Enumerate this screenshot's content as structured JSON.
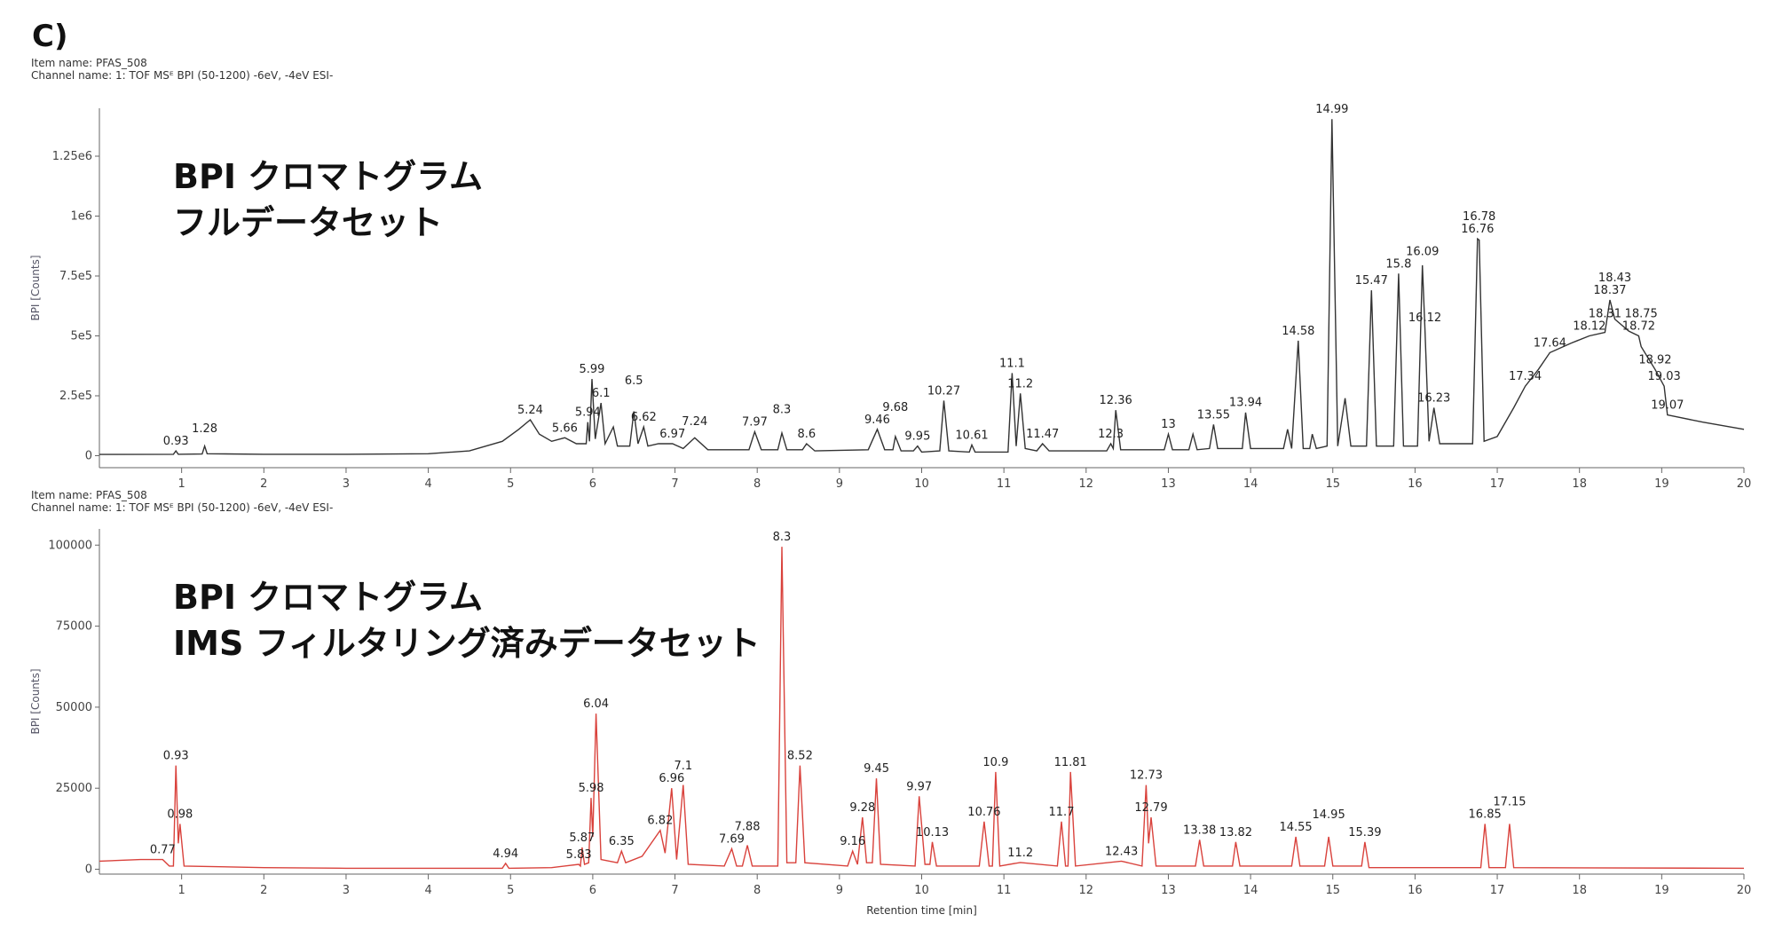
{
  "panel_label": "C)",
  "chart_data": [
    {
      "type": "line",
      "item_name": "Item name: PFAS_508",
      "channel_name": "Channel name: 1: TOF MSᴱ BPI (50-1200) -6eV, -4eV ESI-",
      "annotation": [
        "BPI クロマトグラム",
        "フルデータセット"
      ],
      "y_label": "BPI [Counts]",
      "color": "#333333",
      "xlim": [
        0,
        20
      ],
      "xticks": [
        1,
        2,
        3,
        4,
        5,
        6,
        7,
        8,
        9,
        10,
        11,
        12,
        13,
        14,
        15,
        16,
        17,
        18,
        19,
        20
      ],
      "ylim": [
        -50000,
        1450000
      ],
      "yticks": [
        0,
        {
          "value": 250000,
          "label": "2.5e5"
        },
        {
          "value": 500000,
          "label": "5e5"
        },
        {
          "value": 750000,
          "label": "7.5e5"
        },
        {
          "value": 1000000,
          "label": "1e6"
        },
        {
          "value": 1250000,
          "label": "1.25e6"
        }
      ],
      "x": [
        0,
        0.9,
        0.93,
        0.96,
        1.25,
        1.28,
        1.31,
        2,
        3,
        4,
        4.5,
        4.9,
        5.1,
        5.24,
        5.35,
        5.5,
        5.66,
        5.8,
        5.92,
        5.94,
        5.96,
        5.99,
        6.03,
        6.1,
        6.15,
        6.25,
        6.3,
        6.45,
        6.5,
        6.55,
        6.62,
        6.67,
        6.8,
        6.97,
        7.1,
        7.24,
        7.4,
        7.9,
        7.97,
        8.05,
        8.25,
        8.3,
        8.36,
        8.55,
        8.6,
        8.7,
        9.35,
        9.46,
        9.55,
        9.65,
        9.68,
        9.75,
        9.9,
        9.95,
        10,
        10.22,
        10.27,
        10.33,
        10.58,
        10.61,
        10.65,
        11.05,
        11.1,
        11.15,
        11.2,
        11.26,
        11.4,
        11.47,
        11.55,
        12.25,
        12.3,
        12.33,
        12.36,
        12.42,
        12.95,
        13,
        13.05,
        13.25,
        13.3,
        13.35,
        13.5,
        13.55,
        13.6,
        13.9,
        13.94,
        14,
        14.4,
        14.45,
        14.5,
        14.58,
        14.64,
        14.72,
        14.75,
        14.8,
        14.93,
        14.99,
        15.06,
        15.15,
        15.22,
        15.41,
        15.47,
        15.53,
        15.74,
        15.8,
        15.86,
        16.03,
        16.09,
        16.12,
        16.17,
        16.23,
        16.3,
        16.7,
        16.76,
        16.78,
        16.84,
        17,
        17.2,
        17.34,
        17.5,
        17.64,
        17.9,
        18.12,
        18.31,
        18.37,
        18.43,
        18.6,
        18.72,
        18.75,
        18.92,
        19.03,
        19.07,
        19.5,
        20
      ],
      "values": [
        5000,
        6000,
        20000,
        6000,
        7000,
        40000,
        8000,
        6000,
        6000,
        8000,
        20000,
        60000,
        110000,
        150000,
        90000,
        60000,
        75000,
        50000,
        50000,
        140000,
        60000,
        320000,
        70000,
        220000,
        50000,
        120000,
        40000,
        40000,
        185000,
        50000,
        120000,
        40000,
        50000,
        50000,
        30000,
        75000,
        25000,
        25000,
        100000,
        25000,
        25000,
        95000,
        25000,
        25000,
        50000,
        20000,
        25000,
        110000,
        25000,
        25000,
        80000,
        20000,
        20000,
        40000,
        15000,
        20000,
        230000,
        20000,
        15000,
        45000,
        15000,
        15000,
        345000,
        40000,
        260000,
        30000,
        20000,
        50000,
        20000,
        20000,
        50000,
        30000,
        190000,
        25000,
        25000,
        90000,
        25000,
        25000,
        90000,
        25000,
        30000,
        130000,
        30000,
        30000,
        180000,
        30000,
        30000,
        110000,
        30000,
        480000,
        30000,
        30000,
        90000,
        30000,
        40000,
        1405000,
        40000,
        240000,
        40000,
        40000,
        690000,
        40000,
        40000,
        760000,
        40000,
        40000,
        795000,
        535000,
        60000,
        200000,
        50000,
        50000,
        905000,
        900000,
        60000,
        80000,
        200000,
        290000,
        360000,
        430000,
        470000,
        500000,
        515000,
        650000,
        570000,
        520000,
        500000,
        455000,
        360000,
        290000,
        170000,
        140000,
        110000
      ],
      "peak_labels": {
        "x": [
          0.93,
          1.28,
          5.24,
          5.66,
          5.94,
          5.99,
          6.1,
          6.5,
          6.62,
          6.97,
          7.24,
          7.97,
          8.3,
          8.6,
          9.46,
          9.68,
          9.95,
          10.27,
          10.61,
          11.1,
          11.2,
          11.47,
          12.3,
          12.36,
          13.0,
          13.55,
          13.94,
          14.58,
          14.99,
          15.47,
          15.8,
          16.09,
          16.12,
          16.23,
          16.76,
          16.78,
          17.34,
          17.64,
          18.12,
          18.31,
          18.37,
          18.43,
          18.72,
          18.75,
          18.92,
          19.03,
          19.07
        ],
        "y": [
          20000,
          40000,
          150000,
          75000,
          140000,
          320000,
          220000,
          185000,
          120000,
          50000,
          75000,
          100000,
          95000,
          50000,
          110000,
          80000,
          40000,
          230000,
          45000,
          345000,
          260000,
          50000,
          50000,
          190000,
          90000,
          130000,
          180000,
          480000,
          1405000,
          690000,
          760000,
          795000,
          535000,
          200000,
          905000,
          900000,
          290000,
          430000,
          500000,
          515000,
          650000,
          570000,
          500000,
          455000,
          360000,
          290000,
          170000
        ]
      }
    },
    {
      "type": "line",
      "item_name": "Item name: PFAS_508",
      "channel_name": "Channel name: 1: TOF MSᴱ BPI (50-1200) -6eV, -4eV ESI-",
      "annotation": [
        "BPI クロマトグラム",
        "IMS フィルタリング済みデータセット"
      ],
      "y_label": "BPI [Counts]",
      "x_label": "Retention time [min]",
      "color": "#d9423c",
      "xlim": [
        0,
        20
      ],
      "xticks": [
        1,
        2,
        3,
        4,
        5,
        6,
        7,
        8,
        9,
        10,
        11,
        12,
        13,
        14,
        15,
        16,
        17,
        18,
        19,
        20
      ],
      "ylim": [
        -1500,
        105000
      ],
      "yticks": [
        0,
        25000,
        50000,
        75000,
        100000
      ],
      "x": [
        0,
        0.5,
        0.77,
        0.85,
        0.9,
        0.93,
        0.96,
        0.98,
        1.03,
        2,
        3,
        4,
        4.9,
        4.94,
        4.98,
        5.5,
        5.83,
        5.85,
        5.87,
        5.9,
        5.95,
        5.98,
        6,
        6.04,
        6.1,
        6.3,
        6.35,
        6.4,
        6.6,
        6.82,
        6.88,
        6.96,
        7.02,
        7.1,
        7.16,
        7.6,
        7.69,
        7.75,
        7.82,
        7.88,
        7.94,
        8.25,
        8.3,
        8.36,
        8.47,
        8.52,
        8.58,
        9.1,
        9.16,
        9.22,
        9.28,
        9.33,
        9.4,
        9.45,
        9.5,
        9.92,
        9.97,
        10.04,
        10.1,
        10.13,
        10.18,
        10.7,
        10.76,
        10.82,
        10.86,
        10.9,
        10.95,
        11.2,
        11.65,
        11.7,
        11.75,
        11.78,
        11.81,
        11.87,
        12.43,
        12.68,
        12.73,
        12.76,
        12.79,
        12.85,
        13.33,
        13.38,
        13.43,
        13.78,
        13.82,
        13.87,
        14.5,
        14.55,
        14.6,
        14.9,
        14.95,
        15,
        15.35,
        15.39,
        15.44,
        16.8,
        16.85,
        16.9,
        17.1,
        17.15,
        17.2,
        20
      ],
      "values": [
        2500,
        3000,
        3000,
        1000,
        1000,
        32000,
        8000,
        14000,
        1000,
        500,
        300,
        300,
        300,
        1800,
        300,
        500,
        1500,
        1000,
        6700,
        1500,
        2000,
        22000,
        10000,
        48000,
        3000,
        2000,
        5600,
        2000,
        4000,
        12000,
        5000,
        25000,
        3000,
        26000,
        1500,
        1000,
        6300,
        1000,
        1000,
        7400,
        1000,
        1000,
        99500,
        2000,
        2000,
        32000,
        2000,
        1000,
        5600,
        1500,
        16000,
        2000,
        2000,
        28000,
        1500,
        1000,
        22500,
        1500,
        1500,
        8400,
        1000,
        1000,
        14700,
        1000,
        1000,
        30000,
        1000,
        2100,
        1000,
        14700,
        1000,
        1000,
        30000,
        1000,
        2500,
        1000,
        26000,
        8000,
        16000,
        1000,
        1000,
        9100,
        1000,
        1000,
        8400,
        1000,
        1000,
        10000,
        1000,
        1000,
        10000,
        1000,
        1000,
        8400,
        500,
        500,
        14000,
        500,
        500,
        14000,
        500,
        300
      ],
      "peak_labels": {
        "x": [
          0.77,
          0.93,
          0.98,
          4.94,
          5.83,
          5.87,
          5.98,
          6.04,
          6.35,
          6.82,
          6.96,
          7.1,
          7.69,
          7.88,
          8.3,
          8.52,
          9.16,
          9.28,
          9.45,
          9.97,
          10.13,
          10.76,
          10.9,
          11.2,
          11.7,
          11.81,
          12.43,
          12.73,
          12.79,
          13.38,
          13.82,
          14.55,
          14.95,
          15.39,
          16.85,
          17.15
        ],
        "y": [
          3000,
          32000,
          14000,
          1800,
          1500,
          6700,
          22000,
          48000,
          5600,
          12000,
          25000,
          26000,
          6300,
          7400,
          99500,
          32000,
          5600,
          16000,
          28000,
          22500,
          8400,
          14700,
          30000,
          2100,
          14700,
          30000,
          2500,
          26000,
          16000,
          9100,
          8400,
          10000,
          10000,
          8400,
          14000,
          14000
        ]
      }
    }
  ]
}
